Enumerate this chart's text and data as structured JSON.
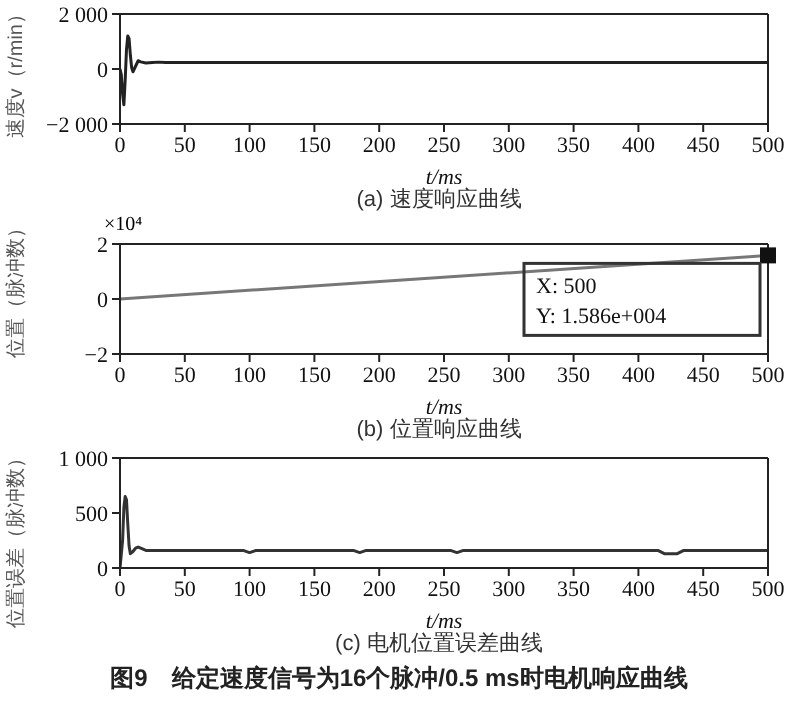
{
  "chart_data": [
    {
      "type": "line",
      "title": "(a) 速度响应曲线",
      "xlabel": "t/ms",
      "ylabel": "速度v（r/min）",
      "xlim": [
        0,
        500
      ],
      "xticks": [
        0,
        50,
        100,
        150,
        200,
        250,
        300,
        350,
        400,
        450,
        500
      ],
      "ylim": [
        -2000,
        2000
      ],
      "yticks": [
        {
          "value": -2000,
          "label": "−2 000"
        },
        0,
        {
          "value": 2000,
          "label": "2 000"
        }
      ],
      "grid": false,
      "marker": "none",
      "line_style": "solid",
      "series": [
        {
          "color": "#222222",
          "x": [
            0,
            1,
            2,
            3,
            4,
            5,
            6,
            7,
            8,
            9,
            10,
            12,
            14,
            16,
            20,
            25,
            30,
            35,
            500
          ],
          "values": [
            0,
            -200,
            -900,
            -1300,
            -400,
            700,
            1200,
            1100,
            500,
            50,
            -100,
            100,
            300,
            260,
            220,
            240,
            250,
            240,
            240
          ]
        }
      ]
    },
    {
      "type": "line",
      "title": "(b) 位置响应曲线",
      "xlabel": "t/ms",
      "ylabel": "位置（脉冲数）",
      "xlim": [
        0,
        500
      ],
      "xticks": [
        0,
        50,
        100,
        150,
        200,
        250,
        300,
        350,
        400,
        450,
        500
      ],
      "ylim": [
        -2,
        2
      ],
      "yticks": [
        {
          "value": -2,
          "label": "−2"
        },
        0,
        2
      ],
      "grid": false,
      "line_style": "solid",
      "annotations": [
        "×10⁴",
        "X: 500",
        "Y: 1.586e+004"
      ],
      "series": [
        {
          "color": "#777777",
          "x": [
            0,
            500
          ],
          "values": [
            0,
            1.586
          ]
        }
      ]
    },
    {
      "type": "line",
      "title": "(c) 电机位置误差曲线",
      "xlabel": "t/ms",
      "ylabel": "位置误差（脉冲数）",
      "xlim": [
        0,
        500
      ],
      "xticks": [
        0,
        50,
        100,
        150,
        200,
        250,
        300,
        350,
        400,
        450,
        500
      ],
      "ylim": [
        0,
        1000
      ],
      "yticks": [
        0,
        500,
        {
          "value": 1000,
          "label": "1 000"
        }
      ],
      "grid": false,
      "marker": "none",
      "line_style": "solid",
      "annotations": [
        "图9　给定速度信号为16个脉冲/0.5 ms时电机响应曲线"
      ],
      "series": [
        {
          "color": "#333333",
          "x": [
            0,
            2,
            3,
            4,
            5,
            6,
            7,
            8,
            10,
            12,
            14,
            16,
            20,
            30,
            95,
            100,
            105,
            180,
            185,
            190,
            255,
            260,
            265,
            415,
            420,
            430,
            435,
            500
          ],
          "values": [
            0,
            250,
            550,
            650,
            620,
            400,
            200,
            130,
            150,
            180,
            190,
            180,
            160,
            160,
            160,
            140,
            160,
            160,
            140,
            160,
            160,
            140,
            160,
            160,
            130,
            130,
            160,
            160
          ]
        }
      ]
    }
  ]
}
